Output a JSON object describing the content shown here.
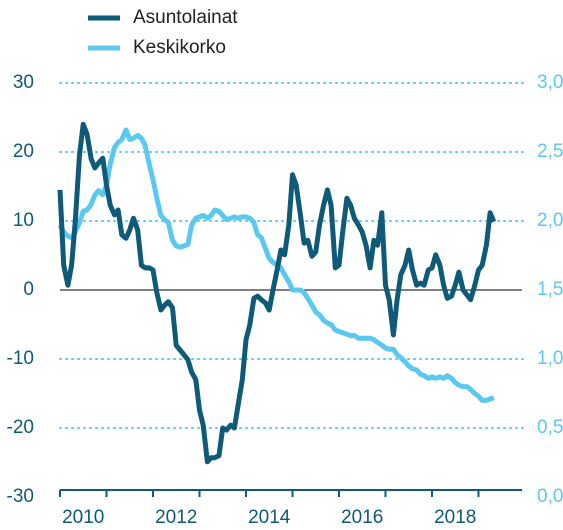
{
  "chart_data": {
    "type": "line",
    "x": [
      2010,
      2010.08,
      2010.17,
      2010.25,
      2010.33,
      2010.42,
      2010.5,
      2010.58,
      2010.67,
      2010.75,
      2010.83,
      2010.92,
      2011,
      2011.08,
      2011.17,
      2011.25,
      2011.33,
      2011.42,
      2011.5,
      2011.58,
      2011.67,
      2011.75,
      2011.83,
      2011.92,
      2012,
      2012.08,
      2012.17,
      2012.25,
      2012.33,
      2012.42,
      2012.5,
      2012.58,
      2012.67,
      2012.75,
      2012.83,
      2012.92,
      2013,
      2013.08,
      2013.17,
      2013.25,
      2013.33,
      2013.42,
      2013.5,
      2013.58,
      2013.67,
      2013.75,
      2013.83,
      2013.92,
      2014,
      2014.08,
      2014.17,
      2014.25,
      2014.33,
      2014.42,
      2014.5,
      2014.58,
      2014.67,
      2014.75,
      2014.83,
      2014.92,
      2015,
      2015.08,
      2015.17,
      2015.25,
      2015.33,
      2015.42,
      2015.5,
      2015.58,
      2015.67,
      2015.75,
      2015.83,
      2015.92,
      2016,
      2016.08,
      2016.17,
      2016.25,
      2016.33,
      2016.42,
      2016.5,
      2016.58,
      2016.67,
      2016.75,
      2016.83,
      2016.92,
      2017,
      2017.08,
      2017.17,
      2017.25,
      2017.33,
      2017.42,
      2017.5,
      2017.58,
      2017.67,
      2017.75,
      2017.83,
      2017.92,
      2018,
      2018.08,
      2018.17,
      2018.25,
      2018.33,
      2018.42,
      2018.5,
      2018.58,
      2018.67,
      2018.75,
      2018.83,
      2018.92,
      2019,
      2019.08,
      2019.17,
      2019.25,
      2019.33
    ],
    "series": [
      {
        "name": "Asuntolainat",
        "color": "#0e5a78",
        "axis": "y",
        "values": [
          14.5,
          3.6,
          0.7,
          3.6,
          10,
          19.6,
          24,
          22.6,
          19,
          17.7,
          18.4,
          19.1,
          15.2,
          12.3,
          10.9,
          11.6,
          8,
          7.5,
          8.7,
          10.4,
          8.7,
          3.6,
          3.2,
          3.2,
          2.9,
          -0.3,
          -2.9,
          -2.2,
          -1.7,
          -2.6,
          -8,
          -8.7,
          -9.4,
          -10.1,
          -11.9,
          -13,
          -17.4,
          -19.6,
          -24.9,
          -24.3,
          -24.3,
          -24,
          -20,
          -20.3,
          -19.6,
          -20,
          -16.7,
          -13,
          -7.2,
          -5.1,
          -1.2,
          -0.9,
          -1.4,
          -1.9,
          -2.9,
          0,
          2.9,
          5.8,
          5.1,
          9.4,
          16.7,
          15.2,
          10.9,
          6.8,
          7.2,
          4.9,
          5.5,
          9.4,
          12.3,
          14.5,
          12.3,
          3.2,
          3.6,
          8.4,
          13.3,
          12.3,
          10.4,
          9.4,
          8.4,
          6.5,
          3.2,
          7.2,
          6.5,
          11.2,
          0.7,
          -1.4,
          -6.5,
          -1.4,
          2.2,
          3.6,
          5.8,
          2.9,
          0.7,
          1,
          0.7,
          2.9,
          3.2,
          5.1,
          3.6,
          0.7,
          -1.2,
          -0.9,
          0.7,
          2.6,
          0,
          -0.7,
          -1.4,
          0.7,
          2.9,
          3.6,
          6.5,
          11.2,
          9.9
        ]
      },
      {
        "name": "Keskikorko",
        "color": "#5bc8ef",
        "axis": "y2",
        "values": [
          1.97,
          1.92,
          1.89,
          1.88,
          1.92,
          1.99,
          2.07,
          2.08,
          2.12,
          2.19,
          2.22,
          2.19,
          2.26,
          2.41,
          2.53,
          2.57,
          2.59,
          2.66,
          2.59,
          2.6,
          2.62,
          2.6,
          2.55,
          2.41,
          2.3,
          2.17,
          2.04,
          2.01,
          1.99,
          1.86,
          1.82,
          1.81,
          1.82,
          1.83,
          1.97,
          2.02,
          2.03,
          2.04,
          2.02,
          2.04,
          2.08,
          2.07,
          2.04,
          2.01,
          2.02,
          2.03,
          2.02,
          2.03,
          2.03,
          2.02,
          1.99,
          1.9,
          1.88,
          1.8,
          1.73,
          1.7,
          1.68,
          1.66,
          1.61,
          1.56,
          1.5,
          1.5,
          1.5,
          1.48,
          1.44,
          1.39,
          1.34,
          1.32,
          1.28,
          1.26,
          1.25,
          1.21,
          1.2,
          1.19,
          1.18,
          1.17,
          1.17,
          1.15,
          1.15,
          1.15,
          1.15,
          1.14,
          1.12,
          1.1,
          1.08,
          1.07,
          1.07,
          1.03,
          1.01,
          0.98,
          0.95,
          0.93,
          0.92,
          0.89,
          0.88,
          0.86,
          0.87,
          0.86,
          0.87,
          0.86,
          0.88,
          0.86,
          0.83,
          0.81,
          0.8,
          0.8,
          0.78,
          0.75,
          0.73,
          0.7,
          0.7,
          0.71,
          0.72
        ]
      }
    ],
    "xlim": [
      2010,
      2019.85
    ],
    "xticks": [
      {
        "value": 2010.5,
        "label": "2010"
      },
      {
        "value": 2012.5,
        "label": "2012"
      },
      {
        "value": 2014.5,
        "label": "2014"
      },
      {
        "value": 2016.5,
        "label": "2016"
      },
      {
        "value": 2018.5,
        "label": "2018"
      }
    ],
    "xminorticks": [
      2010,
      2011,
      2012,
      2013,
      2014,
      2015,
      2016,
      2017,
      2018,
      2019
    ],
    "ylim": [
      -30,
      30
    ],
    "yticks": [
      -30,
      -20,
      -10,
      0,
      10,
      20,
      30
    ],
    "y2lim": [
      0,
      3
    ],
    "y2ticks": [
      {
        "value": 0,
        "label": "0,0"
      },
      {
        "value": 0.5,
        "label": "0,5"
      },
      {
        "value": 1,
        "label": "1,0"
      },
      {
        "value": 1.5,
        "label": "1,5"
      },
      {
        "value": 2,
        "label": "2,0"
      },
      {
        "value": 2.5,
        "label": "2,5"
      },
      {
        "value": 3,
        "label": "3,0"
      }
    ],
    "grid": true
  }
}
